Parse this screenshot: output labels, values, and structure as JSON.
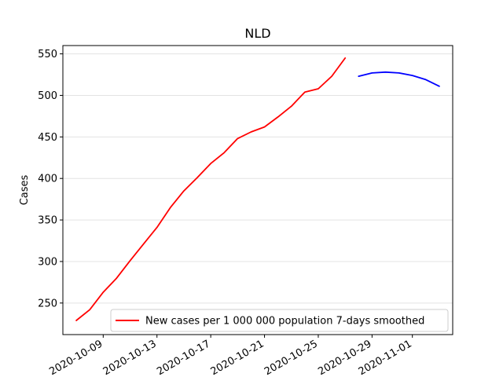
{
  "chart_data": {
    "type": "line",
    "title": "NLD",
    "xlabel": "",
    "ylabel": "Cases",
    "ylim": [
      212,
      560
    ],
    "xlim": [
      "2020-10-06",
      "2020-11-04"
    ],
    "y_ticks": [
      250,
      300,
      350,
      400,
      450,
      500,
      550
    ],
    "x_ticks": [
      "2020-10-09",
      "2020-10-13",
      "2020-10-17",
      "2020-10-21",
      "2020-10-25",
      "2020-10-29",
      "2020-11-01"
    ],
    "grid": "horizontal",
    "legend_position": "lower-right",
    "series": [
      {
        "name": "New cases per 1 000 000 population 7-days smoothed",
        "color": "#ff0000",
        "x": [
          "2020-10-07",
          "2020-10-08",
          "2020-10-09",
          "2020-10-10",
          "2020-10-11",
          "2020-10-12",
          "2020-10-13",
          "2020-10-14",
          "2020-10-15",
          "2020-10-16",
          "2020-10-17",
          "2020-10-18",
          "2020-10-19",
          "2020-10-20",
          "2020-10-21",
          "2020-10-22",
          "2020-10-23",
          "2020-10-24",
          "2020-10-25",
          "2020-10-26",
          "2020-10-27"
        ],
        "y": [
          229,
          242,
          263,
          280,
          301,
          321,
          341,
          365,
          385,
          401,
          418,
          431,
          448,
          456,
          462,
          474,
          487,
          504,
          508,
          523,
          545
        ]
      },
      {
        "name": "",
        "color": "#0000ff",
        "x": [
          "2020-10-28",
          "2020-10-29",
          "2020-10-30",
          "2020-10-31",
          "2020-11-01",
          "2020-11-02",
          "2020-11-03"
        ],
        "y": [
          523,
          527,
          528,
          527,
          524,
          519,
          511
        ]
      }
    ]
  }
}
